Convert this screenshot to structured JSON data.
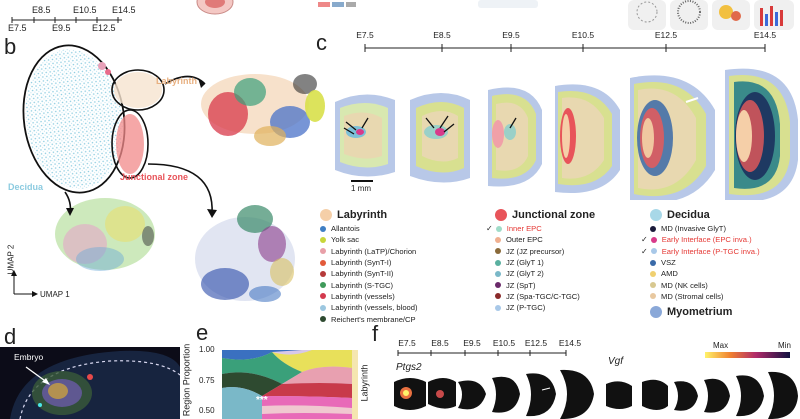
{
  "panel_labels": {
    "b": "b",
    "c": "c",
    "d": "d",
    "e": "e",
    "f": "f"
  },
  "top_timeline": {
    "upper": [
      "E8.5",
      "E10.5",
      "E14.5"
    ],
    "lower": [
      "E7.5",
      "E9.5",
      "E12.5"
    ]
  },
  "umap": {
    "labyrinth": "Labyrinth",
    "decidua": "Decidua",
    "junctional_zone": "Junctional zone",
    "axis_y": "UMAP 2",
    "axis_x": "UMAP 1"
  },
  "panel_c": {
    "stages": [
      "E7.5",
      "E8.5",
      "E9.5",
      "E10.5",
      "E12.5",
      "E14.5"
    ],
    "scale_bar": "1 mm"
  },
  "legend": {
    "labyrinth": {
      "title": "Labyrinth",
      "color": "#f5cfa8",
      "items": [
        {
          "label": "Allantois",
          "color": "#3f7fc4"
        },
        {
          "label": "Yolk sac",
          "color": "#c8d63a"
        },
        {
          "label": "Labyrinth (LaTP)/Chorion",
          "color": "#e8a0a8"
        },
        {
          "label": "Labyrinth (SynT-I)",
          "color": "#e25a3a"
        },
        {
          "label": "Labyrinth (SynT-II)",
          "color": "#b53a3a"
        },
        {
          "label": "Labyrinth (S-TGC)",
          "color": "#3f9a5a"
        },
        {
          "label": "Labyrinth (vessels)",
          "color": "#d33a4e"
        },
        {
          "label": "Labyrinth (vessels, blood)",
          "color": "#9cc7e0"
        },
        {
          "label": "Reichert's membrane/CP",
          "color": "#2e4a30"
        }
      ]
    },
    "junctional": {
      "title": "Junctional zone",
      "color": "#e8545a",
      "items": [
        {
          "label": "Inner EPC",
          "color": "#9fdcc8",
          "highlight": true,
          "check": true
        },
        {
          "label": "Outer EPC",
          "color": "#f0b090"
        },
        {
          "label": "JZ (JZ precursor)",
          "color": "#8a6a3a"
        },
        {
          "label": "JZ (GlyT 1)",
          "color": "#5ab0a0"
        },
        {
          "label": "JZ (GlyT 2)",
          "color": "#7ab8c8"
        },
        {
          "label": "JZ (SpT)",
          "color": "#6a2a6a"
        },
        {
          "label": "JZ (Spa-TGC/C-TGC)",
          "color": "#8a2a2a"
        },
        {
          "label": "JZ (P-TGC)",
          "color": "#a8c8e8"
        }
      ]
    },
    "decidua": {
      "title": "Decidua",
      "color": "#a8d8e8",
      "items": [
        {
          "label": "MD (Invasive GlyT)",
          "color": "#1a1a3a"
        },
        {
          "label": "Early Interface (EPC inva.)",
          "color": "#d83a8a",
          "highlight": true,
          "check": true
        },
        {
          "label": "Early Interface (P-TGC inva.)",
          "color": "#a8c8e8",
          "highlight": true,
          "check": true
        },
        {
          "label": "VSZ",
          "color": "#3a6aa8"
        },
        {
          "label": "AMD",
          "color": "#f0d070"
        },
        {
          "label": "MD (NK cells)",
          "color": "#d8c890"
        },
        {
          "label": "MD (Stromal cells)",
          "color": "#e8c8a0"
        }
      ]
    },
    "myometrium": {
      "title": "Myometrium",
      "color": "#8aa8d8"
    }
  },
  "panel_d": {
    "embryo_label": "Embryo"
  },
  "panel_e": {
    "ylabel": "Region Proportion",
    "yticks": [
      "1.00",
      "0.75",
      "0.50"
    ],
    "significance": "***",
    "side_label": "Labyrinth"
  },
  "panel_f": {
    "stages": [
      "E7.5",
      "E8.5",
      "E9.5",
      "E10.5",
      "E12.5",
      "E14.5"
    ],
    "gene1": "Ptgs2",
    "gene2": "Vgf",
    "colorbar_max": "Max",
    "colorbar_min": "Min"
  }
}
